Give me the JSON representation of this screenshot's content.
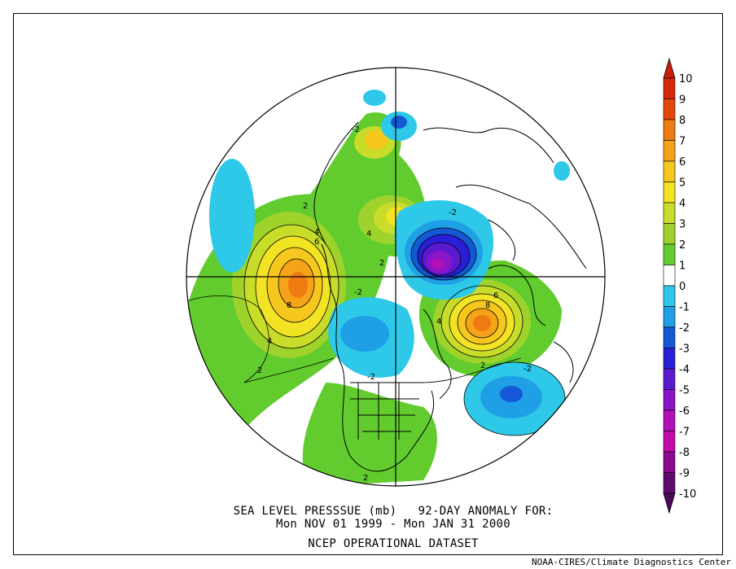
{
  "title": {
    "line1": "SEA LEVEL PRESSSUE (mb)   92-DAY ANOMALY FOR:",
    "line2": "Mon NOV 01 1999 - Mon JAN 31 2000",
    "line3": "NCEP OPERATIONAL DATASET"
  },
  "credit": "NOAA-CIRES/Climate Diagnostics Center",
  "colorbar": {
    "levels": [
      "10",
      "9",
      "8",
      "7",
      "6",
      "5",
      "4",
      "3",
      "2",
      "1",
      "0",
      "-1",
      "-2",
      "-3",
      "-4",
      "-5",
      "-6",
      "-7",
      "-8",
      "-9",
      "-10"
    ],
    "colors": [
      "#d6290a",
      "#e5470a",
      "#ef7a12",
      "#f5a318",
      "#f6c71e",
      "#f2e324",
      "#c8dc2a",
      "#9fd32c",
      "#62cc2e",
      "#ffffff",
      "#2ec8e8",
      "#1f9fe6",
      "#1558d6",
      "#2a1fd8",
      "#5a1ad0",
      "#8a14c8",
      "#b20fb8",
      "#c40aa8",
      "#8c0a8c",
      "#5e0a6e"
    ],
    "top_arrow_color": "#c81e0a",
    "bottom_arrow_color": "#4a0a5a"
  },
  "contour_labels": [
    "2",
    "4",
    "6",
    "8",
    "4",
    "2",
    "2",
    "-2",
    "-2",
    "-2",
    "6",
    "8",
    "4",
    "2",
    "-2",
    "-2",
    "4",
    "2"
  ]
}
